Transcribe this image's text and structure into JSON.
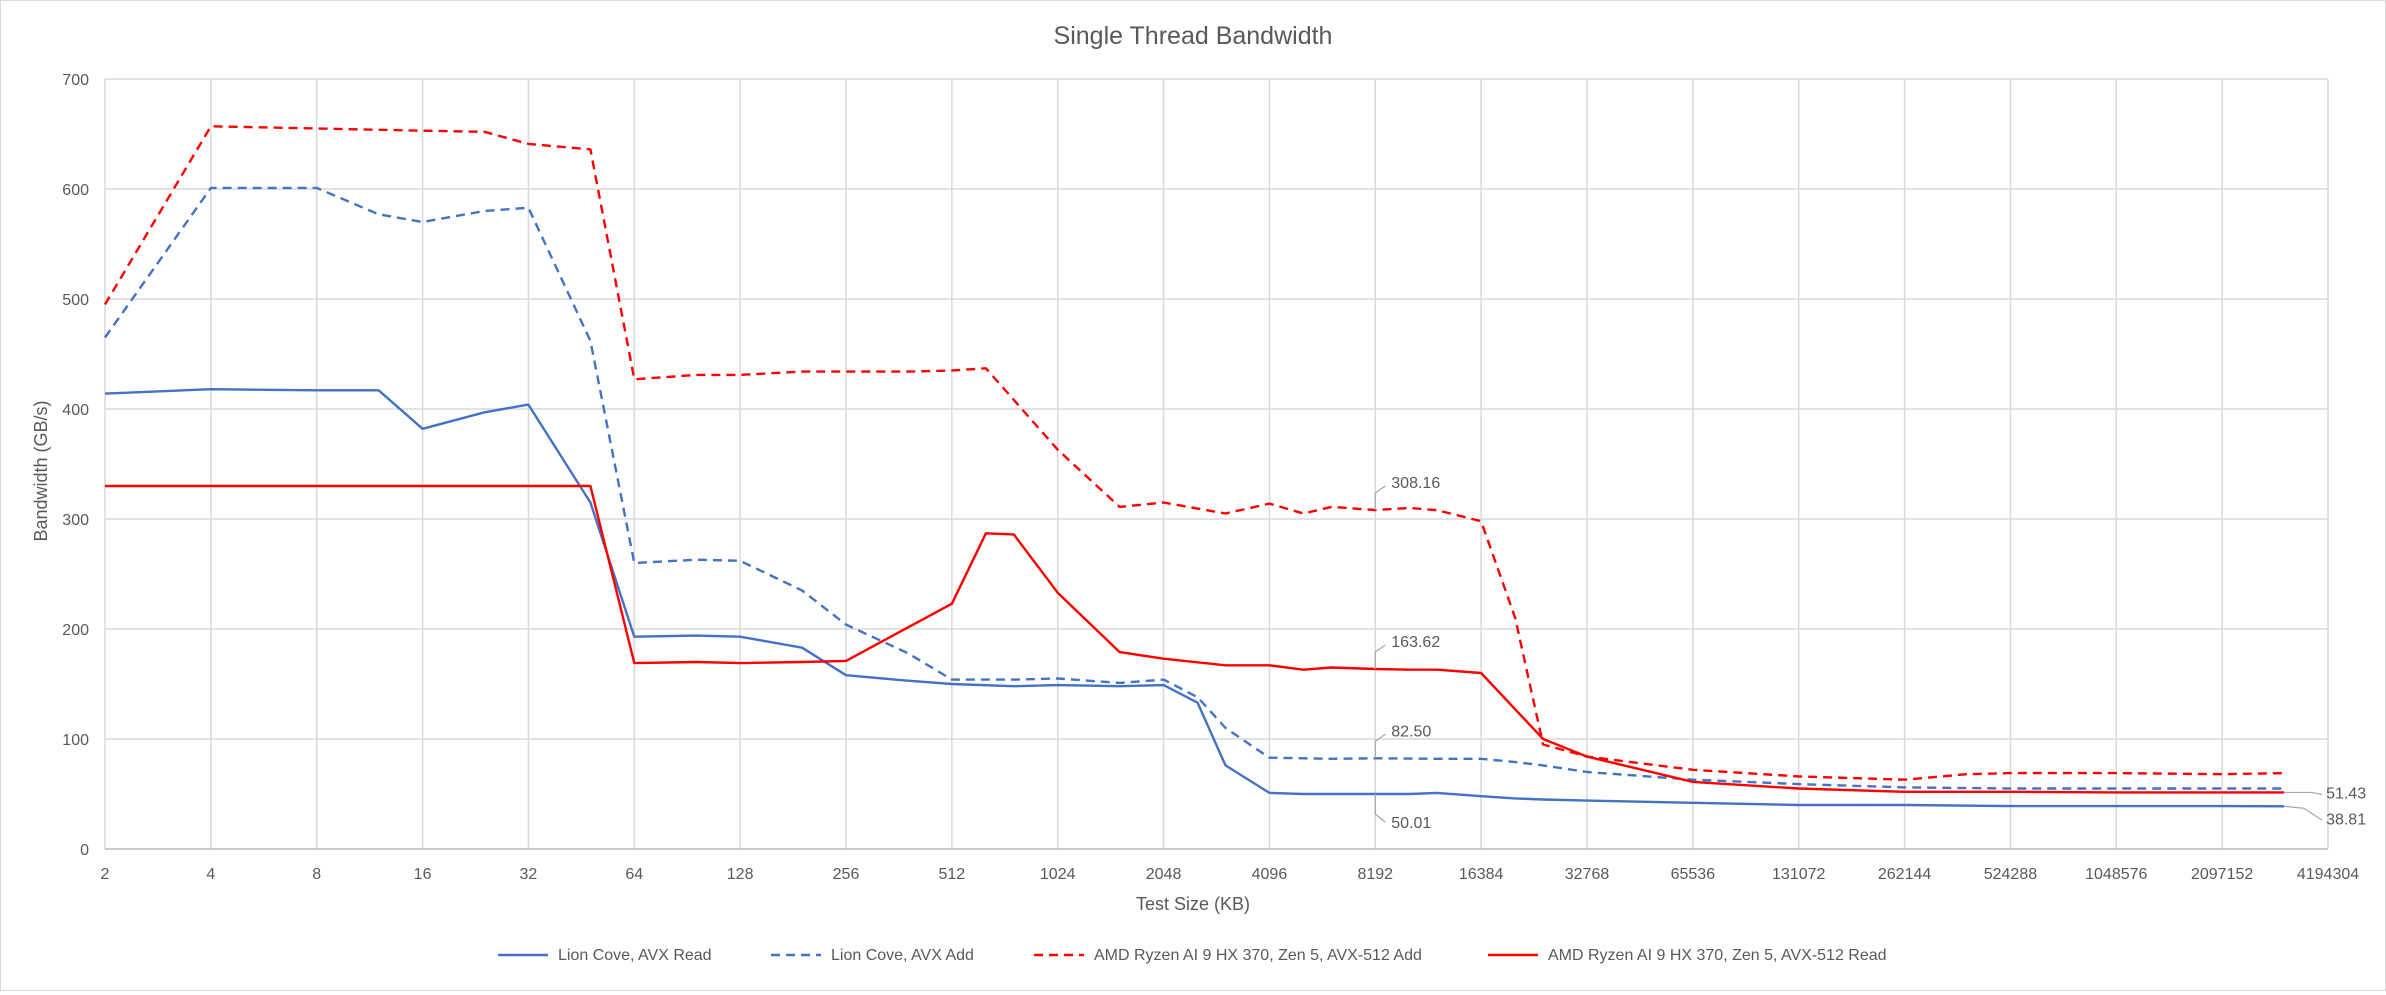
{
  "chart_data": {
    "type": "line",
    "title": "Single Thread Bandwidth",
    "xlabel": "Test Size (KB)",
    "ylabel": "Bandwidth (GB/s)",
    "x_scale": "log2",
    "xlim": [
      2,
      4194304
    ],
    "ylim": [
      0,
      700
    ],
    "y_ticks": [
      0,
      100,
      200,
      300,
      400,
      500,
      600,
      700
    ],
    "x_ticks": [
      "2",
      "4",
      "8",
      "16",
      "32",
      "64",
      "128",
      "256",
      "512",
      "1024",
      "2048",
      "4096",
      "8192",
      "16384",
      "32768",
      "65536",
      "131072",
      "262144",
      "524288",
      "1048576",
      "2097152",
      "4194304"
    ],
    "grid": true,
    "legend_position": "bottom",
    "series": [
      {
        "name": "Lion Cove, AVX Read",
        "color": "#4472c4",
        "dash": "solid",
        "points": [
          [
            2,
            414
          ],
          [
            4,
            418
          ],
          [
            8,
            417
          ],
          [
            12,
            417
          ],
          [
            16,
            382
          ],
          [
            24,
            397
          ],
          [
            32,
            404
          ],
          [
            48,
            315
          ],
          [
            64,
            193
          ],
          [
            96,
            194
          ],
          [
            128,
            193
          ],
          [
            192,
            183
          ],
          [
            256,
            158
          ],
          [
            384,
            153
          ],
          [
            512,
            150
          ],
          [
            768,
            148
          ],
          [
            1024,
            149
          ],
          [
            1536,
            148
          ],
          [
            2048,
            149
          ],
          [
            2560,
            133
          ],
          [
            3072,
            76
          ],
          [
            4096,
            51
          ],
          [
            5120,
            50
          ],
          [
            6144,
            50
          ],
          [
            8192,
            50
          ],
          [
            10240,
            50
          ],
          [
            12288,
            51
          ],
          [
            16384,
            48
          ],
          [
            20480,
            46
          ],
          [
            24576,
            45
          ],
          [
            32768,
            44
          ],
          [
            65536,
            42
          ],
          [
            131072,
            40
          ],
          [
            262144,
            40
          ],
          [
            524288,
            39
          ],
          [
            1048576,
            39
          ],
          [
            2097152,
            39
          ],
          [
            3145728,
            38.81
          ]
        ]
      },
      {
        "name": "Lion Cove, AVX Add",
        "color": "#4472c4",
        "dash": "dashed",
        "points": [
          [
            2,
            465
          ],
          [
            4,
            601
          ],
          [
            8,
            601
          ],
          [
            12,
            577
          ],
          [
            16,
            570
          ],
          [
            24,
            580
          ],
          [
            32,
            583
          ],
          [
            48,
            462
          ],
          [
            64,
            260
          ],
          [
            96,
            263
          ],
          [
            128,
            262
          ],
          [
            192,
            235
          ],
          [
            256,
            204
          ],
          [
            384,
            178
          ],
          [
            512,
            154
          ],
          [
            768,
            154
          ],
          [
            1024,
            155
          ],
          [
            1536,
            151
          ],
          [
            2048,
            154
          ],
          [
            2560,
            138
          ],
          [
            3072,
            110
          ],
          [
            4096,
            83
          ],
          [
            6144,
            82
          ],
          [
            8192,
            82.5
          ],
          [
            12288,
            82
          ],
          [
            16384,
            82
          ],
          [
            20480,
            79
          ],
          [
            24576,
            76
          ],
          [
            32768,
            70
          ],
          [
            65536,
            63
          ],
          [
            131072,
            59
          ],
          [
            262144,
            56
          ],
          [
            524288,
            55
          ],
          [
            1048576,
            55
          ],
          [
            2097152,
            55
          ],
          [
            3145728,
            55
          ]
        ]
      },
      {
        "name": "AMD Ryzen AI 9 HX 370, Zen 5, AVX-512 Add",
        "color": "#ff0000",
        "dash": "dashed",
        "points": [
          [
            2,
            495
          ],
          [
            4,
            657
          ],
          [
            8,
            655
          ],
          [
            16,
            653
          ],
          [
            24,
            652
          ],
          [
            32,
            641
          ],
          [
            48,
            636
          ],
          [
            64,
            427
          ],
          [
            96,
            431
          ],
          [
            128,
            431
          ],
          [
            192,
            434
          ],
          [
            256,
            434
          ],
          [
            384,
            434
          ],
          [
            512,
            435
          ],
          [
            640,
            437
          ],
          [
            1024,
            363
          ],
          [
            1536,
            311
          ],
          [
            2048,
            315
          ],
          [
            3072,
            305
          ],
          [
            4096,
            314
          ],
          [
            5120,
            305
          ],
          [
            6144,
            311
          ],
          [
            8192,
            308.16
          ],
          [
            10240,
            310
          ],
          [
            12288,
            308
          ],
          [
            16384,
            298
          ],
          [
            20480,
            210
          ],
          [
            24576,
            95
          ],
          [
            32768,
            84
          ],
          [
            65536,
            72
          ],
          [
            131072,
            66
          ],
          [
            262144,
            63
          ],
          [
            393216,
            68
          ],
          [
            524288,
            69
          ],
          [
            1048576,
            69
          ],
          [
            2097152,
            68
          ],
          [
            3145728,
            69
          ]
        ]
      },
      {
        "name": "AMD Ryzen AI 9 HX 370, Zen 5, AVX-512 Read",
        "color": "#ff0000",
        "dash": "solid",
        "points": [
          [
            2,
            330
          ],
          [
            48,
            330
          ],
          [
            64,
            169
          ],
          [
            96,
            170
          ],
          [
            128,
            169
          ],
          [
            192,
            170
          ],
          [
            256,
            171
          ],
          [
            512,
            223
          ],
          [
            640,
            287
          ],
          [
            768,
            286
          ],
          [
            1024,
            233
          ],
          [
            1536,
            179
          ],
          [
            2048,
            173
          ],
          [
            3072,
            167
          ],
          [
            4096,
            167
          ],
          [
            5120,
            163
          ],
          [
            6144,
            165
          ],
          [
            8192,
            163.62
          ],
          [
            10240,
            163
          ],
          [
            12288,
            163
          ],
          [
            16384,
            160
          ],
          [
            24576,
            100
          ],
          [
            32768,
            84
          ],
          [
            65536,
            61
          ],
          [
            131072,
            55
          ],
          [
            262144,
            52
          ],
          [
            524288,
            52
          ],
          [
            1048576,
            51.43
          ],
          [
            2097152,
            51.43
          ],
          [
            3145728,
            51.43
          ]
        ]
      }
    ],
    "annotations": [
      {
        "text": "308.16",
        "x": 8192,
        "y": 308.16,
        "color": "#595959"
      },
      {
        "text": "163.62",
        "x": 8192,
        "y": 163.62,
        "color": "#595959"
      },
      {
        "text": "82.50",
        "x": 8192,
        "y": 82.5,
        "color": "#595959"
      },
      {
        "text": "50.01",
        "x": 8192,
        "y": 50.01,
        "color": "#595959"
      },
      {
        "text": "51.43",
        "x": 3145728,
        "y": 51.43,
        "color": "#595959"
      },
      {
        "text": "38.81",
        "x": 3145728,
        "y": 38.81,
        "color": "#595959"
      }
    ]
  }
}
